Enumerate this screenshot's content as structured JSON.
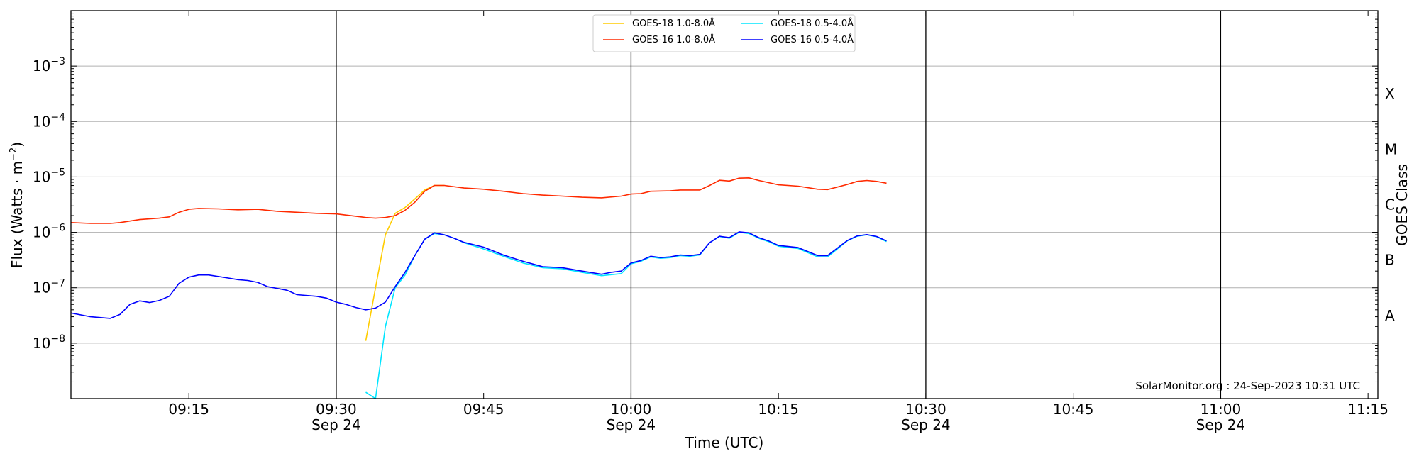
{
  "chart_data": {
    "type": "line",
    "title": "",
    "xlabel": "Time (UTC)",
    "ylabel": "Flux (Watts · m",
    "ylabel_sup": "−2",
    "ylabel_end": ")",
    "right_ylabel": "GOES Class",
    "y_scale": "log",
    "ylim": [
      1e-09,
      0.01
    ],
    "y_ticks": [
      {
        "value": 1e-08,
        "base": "10",
        "exp": "−8"
      },
      {
        "value": 1e-07,
        "base": "10",
        "exp": "−7"
      },
      {
        "value": 1e-06,
        "base": "10",
        "exp": "−6"
      },
      {
        "value": 1e-05,
        "base": "10",
        "exp": "−5"
      },
      {
        "value": 0.0001,
        "base": "10",
        "exp": "−4"
      },
      {
        "value": 0.001,
        "base": "10",
        "exp": "−3"
      }
    ],
    "goes_classes": [
      {
        "label": "A",
        "value": 3.16e-08
      },
      {
        "label": "B",
        "value": 3.16e-07
      },
      {
        "label": "C",
        "value": 3.16e-06
      },
      {
        "label": "M",
        "value": 3.16e-05
      },
      {
        "label": "X",
        "value": 0.000316
      }
    ],
    "xlim": [
      "09:03",
      "11:16"
    ],
    "x_ticks": [
      {
        "time": "09:15",
        "label": "09:15",
        "date": ""
      },
      {
        "time": "09:30",
        "label": "09:30",
        "date": "Sep 24"
      },
      {
        "time": "09:45",
        "label": "09:45",
        "date": ""
      },
      {
        "time": "10:00",
        "label": "10:00",
        "date": "Sep 24"
      },
      {
        "time": "10:15",
        "label": "10:15",
        "date": ""
      },
      {
        "time": "10:30",
        "label": "10:30",
        "date": "Sep 24"
      },
      {
        "time": "10:45",
        "label": "10:45",
        "date": ""
      },
      {
        "time": "11:00",
        "label": "11:00",
        "date": "Sep 24"
      },
      {
        "time": "11:15",
        "label": "11:15",
        "date": ""
      }
    ],
    "vertical_lines": [
      "09:30",
      "10:00",
      "10:30",
      "11:00"
    ],
    "grid": "horizontal",
    "legend_position": "top-center",
    "credit": "SolarMonitor.org : 24-Sep-2023 10:31 UTC",
    "series": [
      {
        "name": "GOES-18 1.0-8.0Å",
        "color": "#ffcc00",
        "points": [
          [
            "09:33",
            1.1e-08
          ],
          [
            "09:34",
            1e-07
          ],
          [
            "09:35",
            9e-07
          ],
          [
            "09:36",
            2.2e-06
          ],
          [
            "09:37",
            2.8e-06
          ],
          [
            "09:38",
            4e-06
          ],
          [
            "09:39",
            5.8e-06
          ],
          [
            "09:40",
            7e-06
          ],
          [
            "09:41",
            7e-06
          ]
        ]
      },
      {
        "name": "GOES-18 0.5-4.0Å",
        "color": "#00e5ff",
        "points": [
          [
            "09:33",
            1.3e-09
          ],
          [
            "09:34",
            1e-09
          ],
          [
            "09:35",
            2e-08
          ],
          [
            "09:36",
            1e-07
          ],
          [
            "09:37",
            1.7e-07
          ],
          [
            "09:38",
            3.8e-07
          ],
          [
            "09:39",
            7.5e-07
          ],
          [
            "09:40",
            9.5e-07
          ],
          [
            "09:41",
            9e-07
          ],
          [
            "09:42",
            7.8e-07
          ],
          [
            "09:43",
            6.5e-07
          ],
          [
            "09:45",
            5e-07
          ],
          [
            "09:47",
            3.7e-07
          ],
          [
            "09:49",
            2.8e-07
          ],
          [
            "09:51",
            2.3e-07
          ],
          [
            "09:53",
            2.2e-07
          ],
          [
            "09:55",
            1.9e-07
          ],
          [
            "09:57",
            1.65e-07
          ],
          [
            "09:59",
            1.8e-07
          ],
          [
            "10:00",
            2.7e-07
          ],
          [
            "10:01",
            3e-07
          ],
          [
            "10:02",
            3.6e-07
          ],
          [
            "10:03",
            3.4e-07
          ],
          [
            "10:04",
            3.5e-07
          ],
          [
            "10:05",
            3.8e-07
          ],
          [
            "10:06",
            3.7e-07
          ],
          [
            "10:07",
            3.9e-07
          ],
          [
            "10:08",
            6.5e-07
          ],
          [
            "10:09",
            8.4e-07
          ],
          [
            "10:10",
            7.8e-07
          ],
          [
            "10:11",
            1e-06
          ],
          [
            "10:12",
            9.5e-07
          ],
          [
            "10:13",
            7.8e-07
          ],
          [
            "10:14",
            6.8e-07
          ],
          [
            "10:15",
            5.6e-07
          ],
          [
            "10:17",
            5.1e-07
          ],
          [
            "10:19",
            3.6e-07
          ],
          [
            "10:20",
            3.6e-07
          ],
          [
            "10:22",
            7e-07
          ],
          [
            "10:23",
            8.5e-07
          ],
          [
            "10:24",
            9e-07
          ],
          [
            "10:25",
            8.3e-07
          ],
          [
            "10:26",
            6.8e-07
          ]
        ]
      },
      {
        "name": "GOES-16 1.0-8.0Å",
        "color": "#ff2a00",
        "points": [
          [
            "09:03",
            1.5e-06
          ],
          [
            "09:05",
            1.45e-06
          ],
          [
            "09:07",
            1.45e-06
          ],
          [
            "09:08",
            1.5e-06
          ],
          [
            "09:10",
            1.7e-06
          ],
          [
            "09:12",
            1.8e-06
          ],
          [
            "09:13",
            1.9e-06
          ],
          [
            "09:14",
            2.3e-06
          ],
          [
            "09:15",
            2.6e-06
          ],
          [
            "09:16",
            2.7e-06
          ],
          [
            "09:18",
            2.65e-06
          ],
          [
            "09:20",
            2.55e-06
          ],
          [
            "09:22",
            2.6e-06
          ],
          [
            "09:24",
            2.4e-06
          ],
          [
            "09:26",
            2.3e-06
          ],
          [
            "09:28",
            2.2e-06
          ],
          [
            "09:30",
            2.15e-06
          ],
          [
            "09:32",
            1.95e-06
          ],
          [
            "09:33",
            1.85e-06
          ],
          [
            "09:34",
            1.8e-06
          ],
          [
            "09:35",
            1.85e-06
          ],
          [
            "09:36",
            2e-06
          ],
          [
            "09:37",
            2.5e-06
          ],
          [
            "09:38",
            3.5e-06
          ],
          [
            "09:39",
            5.5e-06
          ],
          [
            "09:40",
            7e-06
          ],
          [
            "09:41",
            7e-06
          ],
          [
            "09:43",
            6.3e-06
          ],
          [
            "09:45",
            6e-06
          ],
          [
            "09:47",
            5.5e-06
          ],
          [
            "09:49",
            5e-06
          ],
          [
            "09:51",
            4.7e-06
          ],
          [
            "09:53",
            4.5e-06
          ],
          [
            "09:55",
            4.3e-06
          ],
          [
            "09:57",
            4.2e-06
          ],
          [
            "09:59",
            4.5e-06
          ],
          [
            "10:00",
            4.9e-06
          ],
          [
            "10:01",
            5e-06
          ],
          [
            "10:02",
            5.5e-06
          ],
          [
            "10:04",
            5.6e-06
          ],
          [
            "10:05",
            5.8e-06
          ],
          [
            "10:07",
            5.8e-06
          ],
          [
            "10:08",
            7e-06
          ],
          [
            "10:09",
            8.7e-06
          ],
          [
            "10:10",
            8.4e-06
          ],
          [
            "10:11",
            9.5e-06
          ],
          [
            "10:12",
            9.6e-06
          ],
          [
            "10:13",
            8.6e-06
          ],
          [
            "10:15",
            7.2e-06
          ],
          [
            "10:17",
            6.8e-06
          ],
          [
            "10:19",
            6e-06
          ],
          [
            "10:20",
            5.9e-06
          ],
          [
            "10:22",
            7.3e-06
          ],
          [
            "10:23",
            8.3e-06
          ],
          [
            "10:24",
            8.6e-06
          ],
          [
            "10:25",
            8.3e-06
          ],
          [
            "10:26",
            7.7e-06
          ]
        ]
      },
      {
        "name": "GOES-16 0.5-4.0Å",
        "color": "#0000ff",
        "points": [
          [
            "09:03",
            3.5e-08
          ],
          [
            "09:05",
            3e-08
          ],
          [
            "09:07",
            2.8e-08
          ],
          [
            "09:08",
            3.3e-08
          ],
          [
            "09:09",
            5e-08
          ],
          [
            "09:10",
            5.8e-08
          ],
          [
            "09:11",
            5.4e-08
          ],
          [
            "09:12",
            5.9e-08
          ],
          [
            "09:13",
            7e-08
          ],
          [
            "09:14",
            1.2e-07
          ],
          [
            "09:15",
            1.55e-07
          ],
          [
            "09:16",
            1.7e-07
          ],
          [
            "09:17",
            1.7e-07
          ],
          [
            "09:19",
            1.5e-07
          ],
          [
            "09:20",
            1.4e-07
          ],
          [
            "09:21",
            1.35e-07
          ],
          [
            "09:22",
            1.25e-07
          ],
          [
            "09:23",
            1.05e-07
          ],
          [
            "09:25",
            9e-08
          ],
          [
            "09:26",
            7.5e-08
          ],
          [
            "09:28",
            7e-08
          ],
          [
            "09:29",
            6.5e-08
          ],
          [
            "09:30",
            5.5e-08
          ],
          [
            "09:31",
            5e-08
          ],
          [
            "09:32",
            4.4e-08
          ],
          [
            "09:33",
            4e-08
          ],
          [
            "09:34",
            4.3e-08
          ],
          [
            "09:35",
            5.5e-08
          ],
          [
            "09:36",
            1.05e-07
          ],
          [
            "09:37",
            1.9e-07
          ],
          [
            "09:38",
            3.8e-07
          ],
          [
            "09:39",
            7.5e-07
          ],
          [
            "09:40",
            9.8e-07
          ],
          [
            "09:41",
            9e-07
          ],
          [
            "09:42",
            7.8e-07
          ],
          [
            "09:43",
            6.6e-07
          ],
          [
            "09:45",
            5.4e-07
          ],
          [
            "09:47",
            3.9e-07
          ],
          [
            "09:49",
            3e-07
          ],
          [
            "09:51",
            2.4e-07
          ],
          [
            "09:53",
            2.3e-07
          ],
          [
            "09:55",
            2e-07
          ],
          [
            "09:57",
            1.75e-07
          ],
          [
            "09:58",
            1.9e-07
          ],
          [
            "09:59",
            2e-07
          ],
          [
            "10:00",
            2.8e-07
          ],
          [
            "10:01",
            3.1e-07
          ],
          [
            "10:02",
            3.7e-07
          ],
          [
            "10:03",
            3.5e-07
          ],
          [
            "10:04",
            3.6e-07
          ],
          [
            "10:05",
            3.9e-07
          ],
          [
            "10:06",
            3.8e-07
          ],
          [
            "10:07",
            4e-07
          ],
          [
            "10:08",
            6.5e-07
          ],
          [
            "10:09",
            8.5e-07
          ],
          [
            "10:10",
            8e-07
          ],
          [
            "10:11",
            1.02e-06
          ],
          [
            "10:12",
            9.8e-07
          ],
          [
            "10:13",
            8e-07
          ],
          [
            "10:14",
            7e-07
          ],
          [
            "10:15",
            5.8e-07
          ],
          [
            "10:17",
            5.3e-07
          ],
          [
            "10:19",
            3.8e-07
          ],
          [
            "10:20",
            3.8e-07
          ],
          [
            "10:22",
            7.1e-07
          ],
          [
            "10:23",
            8.6e-07
          ],
          [
            "10:24",
            9.1e-07
          ],
          [
            "10:25",
            8.4e-07
          ],
          [
            "10:26",
            7e-07
          ]
        ]
      }
    ],
    "legend_order": [
      0,
      2,
      1,
      3
    ]
  }
}
